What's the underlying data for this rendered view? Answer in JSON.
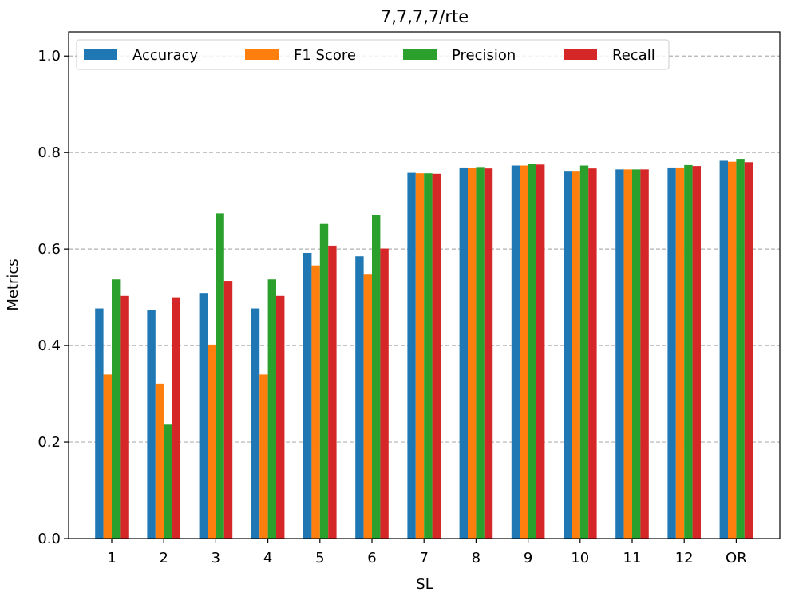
{
  "chart_data": {
    "type": "bar",
    "title": "7,7,7,7/rte",
    "xlabel": "SL",
    "ylabel": "Metrics",
    "ylim": [
      0,
      1.05
    ],
    "yticks": [
      "0.0",
      "0.2",
      "0.4",
      "0.6",
      "0.8",
      "1.0"
    ],
    "grid": "y-dashed",
    "legend_placement": "top-left",
    "categories": [
      "1",
      "2",
      "3",
      "4",
      "5",
      "6",
      "7",
      "8",
      "9",
      "10",
      "11",
      "12",
      "OR"
    ],
    "series": [
      {
        "name": "Accuracy",
        "color": "#1f77b4",
        "values": [
          0.477,
          0.473,
          0.509,
          0.477,
          0.592,
          0.585,
          0.758,
          0.769,
          0.773,
          0.762,
          0.765,
          0.769,
          0.783
        ]
      },
      {
        "name": "F1 Score",
        "color": "#ff7f0e",
        "values": [
          0.34,
          0.321,
          0.402,
          0.34,
          0.566,
          0.547,
          0.757,
          0.768,
          0.773,
          0.762,
          0.765,
          0.769,
          0.781
        ]
      },
      {
        "name": "Precision",
        "color": "#2ca02c",
        "values": [
          0.537,
          0.236,
          0.674,
          0.537,
          0.652,
          0.67,
          0.757,
          0.77,
          0.777,
          0.773,
          0.765,
          0.774,
          0.787
        ]
      },
      {
        "name": "Recall",
        "color": "#d62728",
        "values": [
          0.503,
          0.5,
          0.534,
          0.503,
          0.607,
          0.601,
          0.756,
          0.767,
          0.775,
          0.767,
          0.765,
          0.772,
          0.78
        ]
      }
    ]
  }
}
